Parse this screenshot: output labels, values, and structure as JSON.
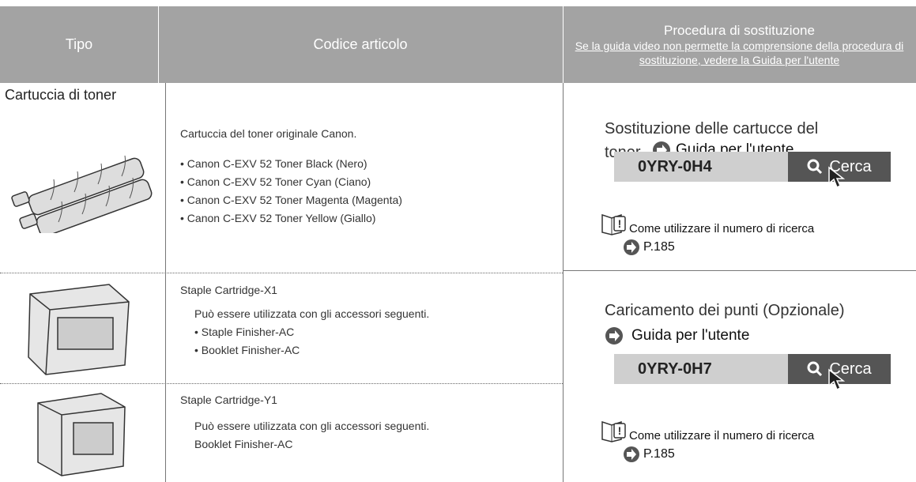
{
  "header": {
    "type": "Tipo",
    "code": "Codice articolo",
    "procedure": {
      "title": "Procedura di sostituzione",
      "note": "Se la guida video non permette la comprensione della procedura di sostituzione, vedere la Guida per l'utente"
    }
  },
  "rows": [
    {
      "type": "Cartuccia di toner",
      "code_title": "Cartuccia del toner originale Canon.",
      "items": [
        "Canon C-EXV 52 Toner Black (Nero)",
        "Canon C-EXV 52 Toner Cyan (Ciano)",
        "Canon C-EXV 52 Toner Magenta (Magenta)",
        "Canon C-EXV 52 Toner Yellow (Giallo)"
      ]
    },
    {
      "code_title": "Staple Cartridge-X1",
      "note": "Può essere utilizzata con gli accessori seguenti.",
      "items": [
        "Staple Finisher-AC",
        "Booklet Finisher-AC"
      ]
    },
    {
      "code_title": "Staple Cartridge-Y1",
      "note": "Può essere utilizzata con gli accessori seguenti.",
      "items": [
        "Booklet Finisher-AC"
      ]
    }
  ],
  "procedures": [
    {
      "title": "Sostituzione delle cartucce del toner",
      "link": "Guida per l'utente",
      "search_code": "0YRY-0H4",
      "search_button": "Cerca",
      "help": "Come utilizzare il numero di ricerca",
      "page": "P.185"
    },
    {
      "title": "Caricamento dei punti (Opzionale)",
      "link": "Guida per l'utente",
      "search_code": "0YRY-0H7",
      "search_button": "Cerca",
      "help": "Come utilizzare il numero di ricerca",
      "page": "P.185"
    }
  ]
}
